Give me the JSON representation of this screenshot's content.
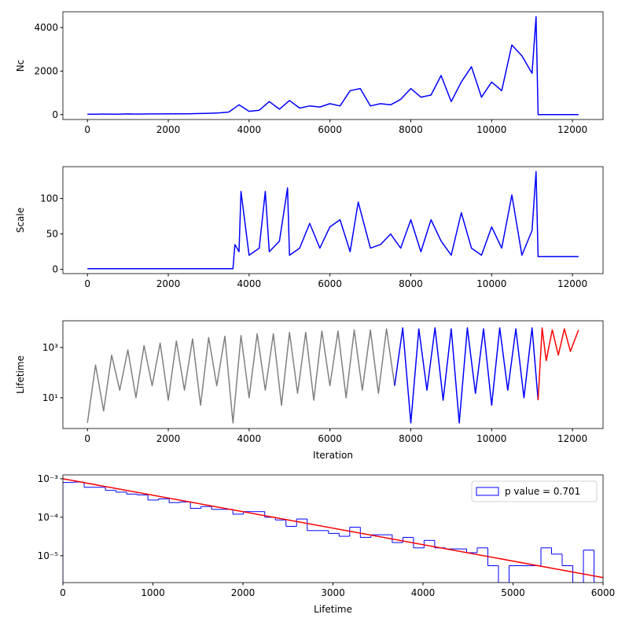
{
  "chart_data": [
    {
      "type": "line",
      "ylabel": "Nc",
      "xlim": [
        -607,
        12757
      ],
      "ylim": [
        -225,
        4725
      ],
      "xticks": [
        0,
        2000,
        4000,
        6000,
        8000,
        10000,
        12000
      ],
      "yticks": [
        0,
        2000,
        4000
      ],
      "series": [
        {
          "color": "blue",
          "x": [
            0,
            250,
            500,
            750,
            1000,
            1250,
            1500,
            1750,
            2000,
            2250,
            2500,
            2750,
            3000,
            3250,
            3500,
            3750,
            4000,
            4250,
            4500,
            4750,
            5000,
            5250,
            5500,
            5750,
            6000,
            6250,
            6500,
            6750,
            7000,
            7250,
            7500,
            7750,
            8000,
            8250,
            8500,
            8750,
            9000,
            9250,
            9500,
            9750,
            10000,
            10250,
            10500,
            10750,
            11000,
            11100,
            11150,
            12150
          ],
          "values": [
            20,
            20,
            25,
            20,
            30,
            25,
            30,
            30,
            35,
            40,
            40,
            50,
            60,
            80,
            120,
            450,
            150,
            200,
            600,
            250,
            650,
            300,
            400,
            350,
            500,
            400,
            1100,
            1200,
            400,
            500,
            450,
            700,
            1200,
            800,
            900,
            1800,
            600,
            1500,
            2200,
            800,
            1500,
            1100,
            3200,
            2700,
            1900,
            4500,
            0,
            0
          ]
        }
      ]
    },
    {
      "type": "line",
      "ylabel": "Scale",
      "xlim": [
        -607,
        12757
      ],
      "ylim": [
        -6,
        145
      ],
      "xticks": [
        0,
        2000,
        4000,
        6000,
        8000,
        10000,
        12000
      ],
      "yticks": [
        0,
        50,
        100
      ],
      "series": [
        {
          "color": "blue",
          "x": [
            0,
            3600,
            3650,
            3750,
            3800,
            4000,
            4250,
            4400,
            4500,
            4750,
            4950,
            5000,
            5250,
            5500,
            5750,
            6000,
            6250,
            6500,
            6700,
            7000,
            7250,
            7500,
            7750,
            8000,
            8250,
            8500,
            8750,
            9000,
            9250,
            9500,
            9750,
            10000,
            10250,
            10500,
            10750,
            11000,
            11100,
            11150,
            12150
          ],
          "values": [
            1,
            1,
            35,
            25,
            110,
            20,
            30,
            110,
            25,
            40,
            115,
            20,
            30,
            65,
            30,
            60,
            70,
            25,
            95,
            30,
            35,
            50,
            30,
            70,
            25,
            70,
            40,
            20,
            80,
            30,
            20,
            60,
            30,
            105,
            20,
            55,
            138,
            18,
            18
          ]
        }
      ]
    },
    {
      "type": "line",
      "ylabel": "Lifetime",
      "xlabel": "Iteration",
      "ylog": true,
      "xlim": [
        -607,
        12757
      ],
      "ylim": [
        0.6,
        11500
      ],
      "xticks": [
        0,
        2000,
        4000,
        6000,
        8000,
        10000,
        12000
      ],
      "yticks": [
        {
          "value": 10,
          "label": "10¹"
        },
        {
          "value": 1000,
          "label": "10³"
        }
      ],
      "series": [
        {
          "color": "gray",
          "x": [
            0,
            200,
            400,
            600,
            800,
            1000,
            1200,
            1400,
            1600,
            1800,
            2000,
            2200,
            2400,
            2600,
            2800,
            3000,
            3200,
            3400,
            3600,
            3800,
            4000,
            4200,
            4400,
            4600,
            4800,
            5000,
            5200,
            5400,
            5600,
            5800,
            6000,
            6200,
            6400,
            6600,
            6800,
            7000,
            7200,
            7400,
            7600
          ],
          "values": [
            1,
            200,
            3,
            500,
            20,
            800,
            10,
            1200,
            30,
            1500,
            8,
            1800,
            20,
            2200,
            5,
            2500,
            30,
            2800,
            1,
            3000,
            10,
            3500,
            20,
            3500,
            5,
            4000,
            15,
            4000,
            8,
            4500,
            30,
            4500,
            10,
            5000,
            20,
            5000,
            15,
            5500,
            30
          ]
        },
        {
          "color": "blue",
          "x": [
            7600,
            7800,
            8000,
            8200,
            8400,
            8600,
            8800,
            9000,
            9200,
            9400,
            9600,
            9800,
            10000,
            10200,
            10400,
            10600,
            10800,
            11000,
            11150
          ],
          "values": [
            30,
            6000,
            1,
            5500,
            20,
            6000,
            8,
            5500,
            1,
            6000,
            15,
            5500,
            5,
            6000,
            20,
            5500,
            10,
            6000,
            8
          ]
        },
        {
          "color": "red",
          "x": [
            11150,
            11250,
            11350,
            11500,
            11650,
            11800,
            11950,
            12150
          ],
          "values": [
            8,
            6000,
            300,
            5000,
            500,
            5500,
            700,
            5000
          ]
        }
      ]
    },
    {
      "type": "histogram",
      "xlabel": "Lifetime",
      "ylog": true,
      "legend": "upper right",
      "xlim": [
        0,
        6000
      ],
      "ylim": [
        2e-06,
        0.00126
      ],
      "xticks": [
        0,
        1000,
        2000,
        3000,
        4000,
        5000,
        6000
      ],
      "yticks": [
        {
          "value": 1e-05,
          "label": "10⁻⁵"
        },
        {
          "value": 0.0001,
          "label": "10⁻⁴"
        },
        {
          "value": 0.001,
          "label": "10⁻³"
        }
      ],
      "bins": [
        0,
        118,
        236,
        354,
        472,
        590,
        708,
        826,
        944,
        1062,
        1180,
        1298,
        1416,
        1534,
        1652,
        1770,
        1888,
        2006,
        2124,
        2242,
        2360,
        2478,
        2596,
        2714,
        2832,
        2950,
        3068,
        3186,
        3304,
        3422,
        3540,
        3658,
        3776,
        3894,
        4012,
        4130,
        4248,
        4366,
        4484,
        4602,
        4720,
        4838,
        4956,
        5074,
        5192,
        5310,
        5428,
        5546,
        5664,
        5782,
        5900
      ],
      "series": [
        {
          "name": "p value = 0.701",
          "color": "blue",
          "values": [
            0.0008,
            0.00082,
            0.0006,
            0.0006,
            0.0005,
            0.00045,
            0.0004,
            0.00038,
            0.00028,
            0.0003,
            0.00024,
            0.00025,
            0.00017,
            0.00019,
            0.00016,
            0.00016,
            0.00012,
            0.00014,
            0.00014,
            0.0001,
            8.5e-05,
            5.8e-05,
            9e-05,
            4.5e-05,
            4.5e-05,
            3.8e-05,
            3.2e-05,
            5.5e-05,
            3e-05,
            3.5e-05,
            3.5e-05,
            2.2e-05,
            3e-05,
            1.6e-05,
            2.5e-05,
            1.6e-05,
            1.5e-05,
            1.5e-05,
            1.2e-05,
            1.6e-05,
            5.5e-06,
            0,
            5.5e-06,
            5.5e-06,
            5.5e-06,
            1.6e-05,
            1.1e-05,
            5.5e-06,
            0,
            1.4e-05
          ]
        }
      ],
      "fit": {
        "color": "red",
        "x": [
          0,
          6000
        ],
        "values": [
          0.001,
          2.7e-06
        ]
      }
    }
  ]
}
